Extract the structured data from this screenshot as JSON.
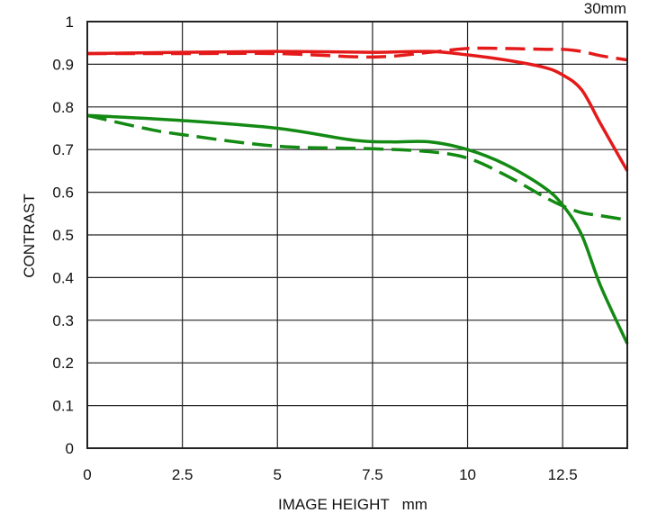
{
  "chart_data": {
    "type": "line",
    "title": "",
    "corner_label": "30mm",
    "xlabel": "IMAGE HEIGHT   mm",
    "ylabel": "CONTRAST",
    "xlim": [
      0,
      14.2
    ],
    "ylim": [
      0,
      1
    ],
    "grid": true,
    "x_ticks": [
      0,
      2.5,
      5,
      7.5,
      10,
      12.5
    ],
    "x_tick_labels": [
      "0",
      "2.5",
      "5",
      "7.5",
      "10",
      "12.5"
    ],
    "y_ticks": [
      0,
      0.1,
      0.2,
      0.3,
      0.4,
      0.5,
      0.6,
      0.7,
      0.8,
      0.9,
      1
    ],
    "y_tick_labels": [
      "0",
      "0.1",
      "0.2",
      "0.3",
      "0.4",
      "0.5",
      "0.6",
      "0.7",
      "0.8",
      "0.9",
      "1"
    ],
    "series": [
      {
        "color": "#e41a1a",
        "dash": "solid",
        "points": [
          [
            0,
            0.925
          ],
          [
            2.5,
            0.928
          ],
          [
            5,
            0.93
          ],
          [
            7.5,
            0.928
          ],
          [
            9,
            0.93
          ],
          [
            10,
            0.922
          ],
          [
            11,
            0.91
          ],
          [
            12,
            0.893
          ],
          [
            12.5,
            0.875
          ],
          [
            13,
            0.84
          ],
          [
            13.5,
            0.76
          ],
          [
            14.2,
            0.65
          ]
        ]
      },
      {
        "color": "#e41a1a",
        "dash": "dashed",
        "points": [
          [
            0,
            0.925
          ],
          [
            2.5,
            0.925
          ],
          [
            5,
            0.925
          ],
          [
            7.5,
            0.917
          ],
          [
            9,
            0.928
          ],
          [
            10,
            0.937
          ],
          [
            11,
            0.937
          ],
          [
            12,
            0.935
          ],
          [
            12.5,
            0.935
          ],
          [
            13,
            0.93
          ],
          [
            13.5,
            0.92
          ],
          [
            14.2,
            0.91
          ]
        ]
      },
      {
        "color": "#138a13",
        "dash": "solid",
        "points": [
          [
            0,
            0.78
          ],
          [
            2.5,
            0.768
          ],
          [
            5,
            0.75
          ],
          [
            7,
            0.722
          ],
          [
            8,
            0.718
          ],
          [
            9,
            0.718
          ],
          [
            10,
            0.7
          ],
          [
            11,
            0.665
          ],
          [
            12,
            0.612
          ],
          [
            12.5,
            0.57
          ],
          [
            13,
            0.5
          ],
          [
            13.5,
            0.38
          ],
          [
            14.2,
            0.245
          ]
        ]
      },
      {
        "color": "#138a13",
        "dash": "dashed",
        "points": [
          [
            0,
            0.78
          ],
          [
            1.5,
            0.75
          ],
          [
            2.5,
            0.735
          ],
          [
            5,
            0.708
          ],
          [
            7.5,
            0.702
          ],
          [
            9,
            0.695
          ],
          [
            10,
            0.68
          ],
          [
            11,
            0.64
          ],
          [
            12,
            0.59
          ],
          [
            12.5,
            0.568
          ],
          [
            13,
            0.552
          ],
          [
            13.5,
            0.545
          ],
          [
            14.2,
            0.535
          ]
        ]
      }
    ]
  }
}
